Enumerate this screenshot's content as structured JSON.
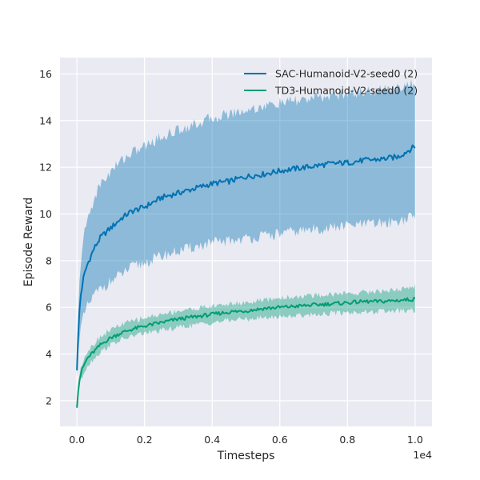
{
  "chart_data": {
    "type": "line",
    "title": "",
    "xlabel": "Timesteps",
    "ylabel": "Episode Reward",
    "x_offset_label": "1e4",
    "xlim": [
      -0.05,
      1.05
    ],
    "ylim": [
      0.9,
      16.7
    ],
    "xticks": [
      0.0,
      0.2,
      0.4,
      0.6,
      0.8,
      1.0
    ],
    "xtick_labels": [
      "0.0",
      "0.2",
      "0.4",
      "0.6",
      "0.8",
      "1.0"
    ],
    "yticks": [
      2,
      4,
      6,
      8,
      10,
      12,
      14,
      16
    ],
    "ytick_labels": [
      "2",
      "4",
      "6",
      "8",
      "10",
      "12",
      "14",
      "16"
    ],
    "grid": true,
    "legend_position": "top-right",
    "x": [
      0.0,
      0.005,
      0.01,
      0.02,
      0.03,
      0.05,
      0.07,
      0.1,
      0.13,
      0.16,
      0.2,
      0.25,
      0.3,
      0.35,
      0.4,
      0.45,
      0.5,
      0.55,
      0.6,
      0.65,
      0.7,
      0.75,
      0.8,
      0.85,
      0.9,
      0.95,
      1.0
    ],
    "series": [
      {
        "name": "SAC-Humanoid-V2-seed0 (2)",
        "color": "#0072b2",
        "mean": [
          3.3,
          5.3,
          6.4,
          7.3,
          7.8,
          8.5,
          9.0,
          9.4,
          9.8,
          10.1,
          10.3,
          10.7,
          10.9,
          11.1,
          11.3,
          11.4,
          11.6,
          11.7,
          11.85,
          11.95,
          12.05,
          12.15,
          12.2,
          12.3,
          12.35,
          12.45,
          12.9
        ],
        "lower": [
          3.0,
          4.2,
          5.0,
          5.6,
          6.0,
          6.5,
          6.8,
          7.1,
          7.4,
          7.7,
          7.9,
          8.2,
          8.4,
          8.6,
          8.75,
          8.85,
          8.95,
          9.05,
          9.15,
          9.25,
          9.35,
          9.4,
          9.5,
          9.55,
          9.6,
          9.7,
          9.9
        ],
        "upper": [
          3.6,
          6.4,
          7.8,
          9.0,
          9.7,
          10.6,
          11.3,
          11.8,
          12.3,
          12.6,
          12.9,
          13.3,
          13.6,
          13.85,
          14.1,
          14.3,
          14.45,
          14.6,
          14.75,
          14.85,
          14.95,
          15.05,
          15.15,
          15.25,
          15.3,
          15.45,
          15.6
        ]
      },
      {
        "name": "TD3-Humanoid-V2-seed0 (2)",
        "color": "#009e73",
        "mean": [
          1.7,
          2.6,
          3.1,
          3.5,
          3.8,
          4.1,
          4.4,
          4.7,
          4.9,
          5.05,
          5.2,
          5.35,
          5.5,
          5.6,
          5.7,
          5.8,
          5.85,
          5.95,
          6.0,
          6.05,
          6.1,
          6.15,
          6.2,
          6.25,
          6.25,
          6.3,
          6.35
        ],
        "lower": [
          1.6,
          2.4,
          2.8,
          3.2,
          3.5,
          3.8,
          4.1,
          4.4,
          4.6,
          4.75,
          4.9,
          5.0,
          5.15,
          5.25,
          5.35,
          5.45,
          5.5,
          5.55,
          5.6,
          5.65,
          5.7,
          5.75,
          5.78,
          5.8,
          5.82,
          5.85,
          5.85
        ],
        "upper": [
          1.8,
          2.8,
          3.4,
          3.8,
          4.1,
          4.45,
          4.75,
          5.05,
          5.25,
          5.4,
          5.55,
          5.7,
          5.85,
          5.95,
          6.05,
          6.15,
          6.2,
          6.3,
          6.4,
          6.45,
          6.5,
          6.55,
          6.6,
          6.65,
          6.7,
          6.75,
          6.9
        ]
      }
    ]
  }
}
